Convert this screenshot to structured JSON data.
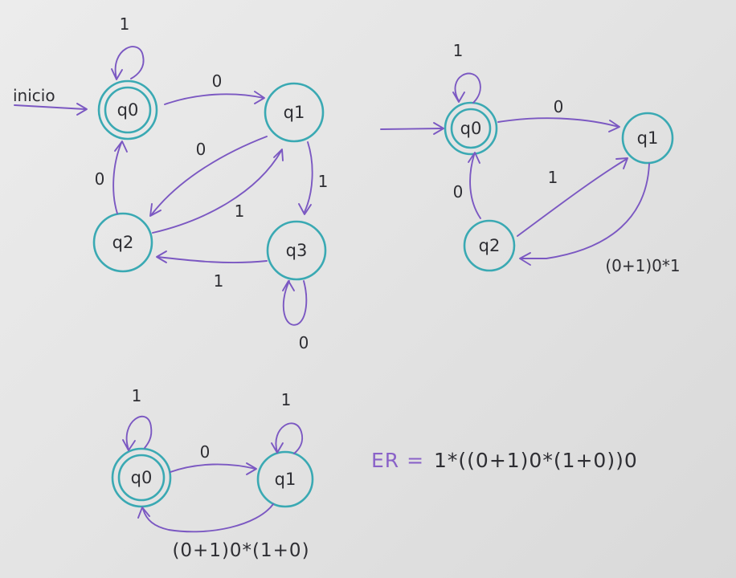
{
  "diagram1": {
    "start_label": "inicio",
    "states": {
      "q0": "q0",
      "q1": "q1",
      "q2": "q2",
      "q3": "q3"
    },
    "edges": {
      "q0_self": "1",
      "q0_q1": "0",
      "q1_q2": "0",
      "q2_q1": "1",
      "q2_q0": "0",
      "q1_q3": "1",
      "q3_q2": "1",
      "q3_self": "0"
    }
  },
  "diagram2": {
    "states": {
      "q0": "q0",
      "q1": "q1",
      "q2": "q2"
    },
    "edges": {
      "q0_self": "1",
      "q0_q1": "0",
      "q2_q1": "1",
      "q2_q0": "0",
      "q1_q2": "(0+1)0*1"
    }
  },
  "diagram3": {
    "states": {
      "q0": "q0",
      "q1": "q1"
    },
    "edges": {
      "q0_self": "1",
      "q0_q1": "0",
      "q1_self": "1",
      "q1_q0": "(0+1)0*(1+0)"
    }
  },
  "regex": {
    "prefix": "ER =",
    "expression": "1*((0+1)0*(1+0))0"
  },
  "colors": {
    "state": "#3aa9b3",
    "arrow": "#7b58c2",
    "ink": "#2e2e33",
    "regex_prefix": "#8a62c8"
  }
}
